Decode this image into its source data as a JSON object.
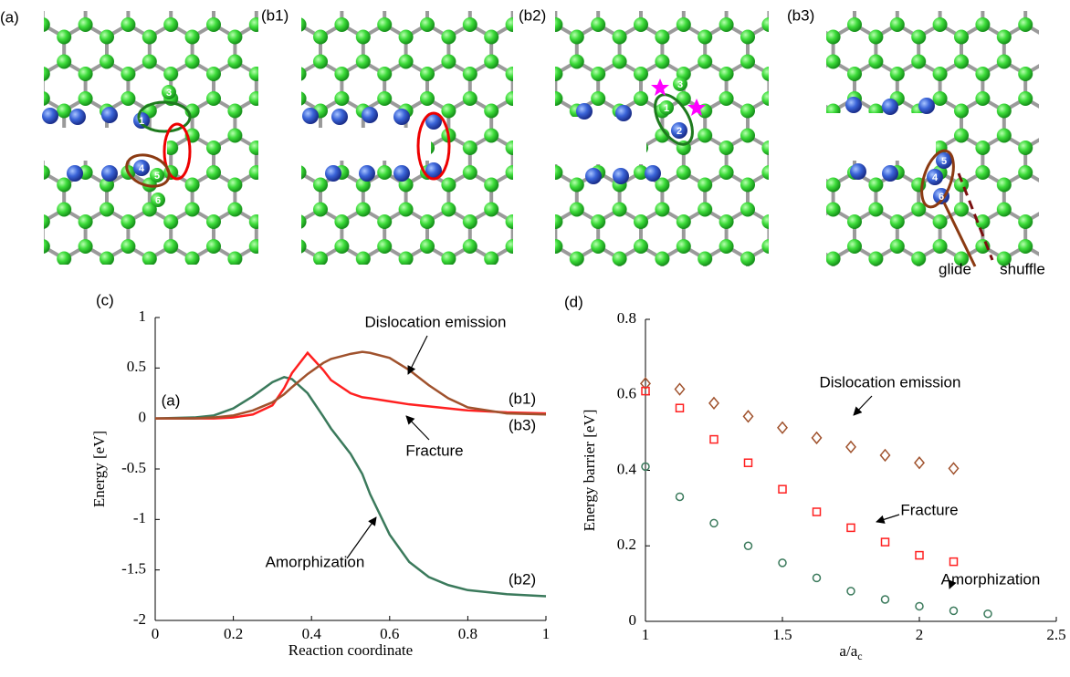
{
  "panels": [
    {
      "label": "(a)",
      "atoms": [
        "1",
        "3",
        "4",
        "5",
        "6"
      ]
    },
    {
      "label": "(b1)",
      "atoms": []
    },
    {
      "label": "(b2)",
      "atoms": [
        "1",
        "2",
        "3"
      ]
    },
    {
      "label": "(b3)",
      "atoms": [
        "5",
        "4",
        "6"
      ],
      "annotations": [
        "glide",
        "shuffle"
      ]
    }
  ],
  "chart_data": [
    {
      "type": "line",
      "panel_label": "(c)",
      "ylabel": "Energy [eV]",
      "xlabel": "Reaction coordinate",
      "x": [
        0,
        0.1,
        0.15,
        0.2,
        0.25,
        0.3,
        0.33,
        0.35,
        0.39,
        0.43,
        0.45,
        0.5,
        0.53,
        0.55,
        0.6,
        0.65,
        0.7,
        0.75,
        0.8,
        0.9,
        1
      ],
      "series": [
        {
          "name": "Amorphization",
          "color": "#3b7a5c",
          "values": [
            0,
            0.01,
            0.03,
            0.1,
            0.22,
            0.36,
            0.41,
            0.39,
            0.25,
            0.02,
            -0.1,
            -0.35,
            -0.55,
            -0.75,
            -1.15,
            -1.42,
            -1.57,
            -1.65,
            -1.7,
            -1.74,
            -1.76
          ]
        },
        {
          "name": "Fracture",
          "color": "#ff2020",
          "values": [
            0,
            0,
            0,
            0.01,
            0.04,
            0.13,
            0.3,
            0.45,
            0.65,
            0.48,
            0.38,
            0.25,
            0.21,
            0.2,
            0.17,
            0.14,
            0.12,
            0.1,
            0.08,
            0.06,
            0.05
          ]
        },
        {
          "name": "Dislocation emission",
          "color": "#a0522d",
          "values": [
            0,
            0,
            0.01,
            0.03,
            0.08,
            0.16,
            0.24,
            0.31,
            0.44,
            0.55,
            0.59,
            0.64,
            0.66,
            0.65,
            0.6,
            0.48,
            0.33,
            0.2,
            0.11,
            0.05,
            0.04
          ]
        }
      ],
      "annotations": [
        "(a)",
        "(b1)",
        "(b3)",
        "(b2)"
      ],
      "xlim": [
        0,
        1
      ],
      "xticks": [
        0,
        0.2,
        0.4,
        0.6,
        0.8,
        1
      ],
      "ylim": [
        -2,
        1
      ],
      "yticks": [
        -2,
        -1.5,
        -1,
        -0.5,
        0,
        0.5,
        1
      ]
    },
    {
      "type": "scatter",
      "panel_label": "(d)",
      "ylabel": "Energy barrier [eV]",
      "xlabel": "a/a",
      "xlabel_subscript": "c",
      "series": [
        {
          "name": "Dislocation emission",
          "color": "#a0522d",
          "marker": "diamond",
          "x": [
            1,
            1.125,
            1.25,
            1.375,
            1.5,
            1.625,
            1.75,
            1.875,
            2,
            2.125
          ],
          "values": [
            0.63,
            0.615,
            0.578,
            0.543,
            0.513,
            0.486,
            0.462,
            0.44,
            0.42,
            0.405
          ]
        },
        {
          "name": "Fracture",
          "color": "#ff2020",
          "marker": "square",
          "x": [
            1,
            1.125,
            1.25,
            1.375,
            1.5,
            1.625,
            1.75,
            1.875,
            2,
            2.125
          ],
          "values": [
            0.61,
            0.565,
            0.482,
            0.42,
            0.35,
            0.29,
            0.248,
            0.21,
            0.175,
            0.158
          ]
        },
        {
          "name": "Amorphization",
          "color": "#3b7a5c",
          "marker": "circle",
          "x": [
            1,
            1.125,
            1.25,
            1.375,
            1.5,
            1.625,
            1.75,
            1.875,
            2,
            2.125,
            2.25
          ],
          "values": [
            0.41,
            0.33,
            0.26,
            0.2,
            0.155,
            0.115,
            0.08,
            0.058,
            0.04,
            0.028,
            0.02
          ]
        }
      ],
      "xlim": [
        1,
        2.5
      ],
      "xticks": [
        1,
        1.5,
        2,
        2.5
      ],
      "ylim": [
        0,
        0.8
      ],
      "yticks": [
        0,
        0.2,
        0.4,
        0.6,
        0.8
      ]
    }
  ]
}
